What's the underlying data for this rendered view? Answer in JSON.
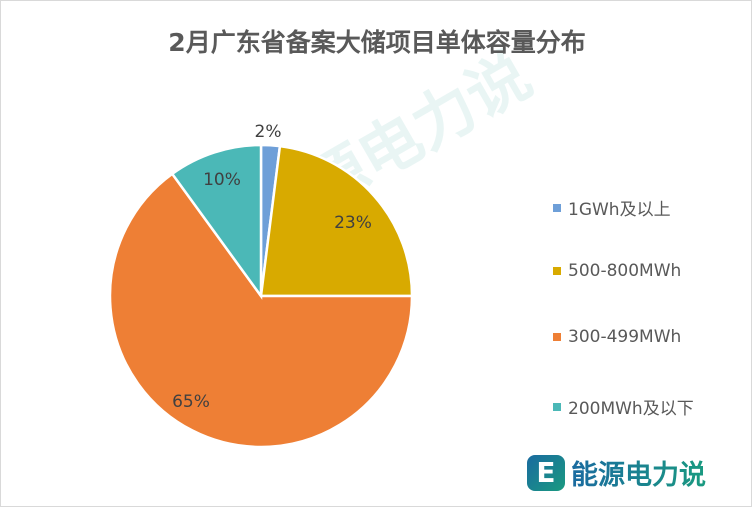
{
  "chart_data": {
    "type": "pie",
    "title": "2月广东省备案大储项目单体容量分布",
    "categories": [
      "1GWh及以上",
      "500-800MWh",
      "300-499MWh",
      "200MWh及以下"
    ],
    "values": [
      2,
      23,
      65,
      10
    ],
    "labels": [
      "2%",
      "23%",
      "65%",
      "10%"
    ],
    "colors": [
      "#6e9fd8",
      "#d8aa00",
      "#ee7f35",
      "#4bb8b7"
    ],
    "legend_position": "right"
  },
  "watermark": "能源电力说",
  "logo": {
    "mark": "E",
    "text": "能源电力说"
  }
}
